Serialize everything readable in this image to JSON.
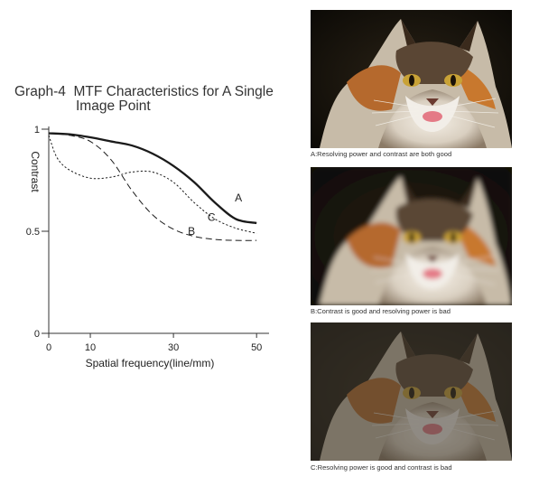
{
  "graph": {
    "title_line1": "Graph-4  MTF Characteristics for A Single",
    "title_line2": "Image Point"
  },
  "chart_data": {
    "type": "line",
    "xlabel": "Spatial frequency(line/mm)",
    "ylabel": "Contrast",
    "xlim": [
      0,
      53
    ],
    "ylim": [
      0,
      1
    ],
    "x_ticks": [
      0,
      10,
      30,
      50
    ],
    "y_ticks": [
      0,
      0.5,
      1
    ],
    "y_tick_labels": [
      "0",
      "0.5",
      "1"
    ],
    "grid": false,
    "series": [
      {
        "name": "A",
        "style": "solid",
        "x": [
          0,
          5,
          10,
          15,
          20,
          25,
          30,
          35,
          40,
          45,
          50
        ],
        "y": [
          0.98,
          0.975,
          0.96,
          0.94,
          0.92,
          0.88,
          0.82,
          0.74,
          0.64,
          0.56,
          0.54
        ]
      },
      {
        "name": "B",
        "style": "dashed",
        "x": [
          0,
          5,
          10,
          15,
          20,
          25,
          30,
          35,
          40,
          45,
          50
        ],
        "y": [
          0.98,
          0.97,
          0.94,
          0.85,
          0.7,
          0.58,
          0.51,
          0.475,
          0.46,
          0.455,
          0.455
        ]
      },
      {
        "name": "C",
        "style": "dotted",
        "x": [
          0,
          2,
          5,
          10,
          15,
          20,
          25,
          30,
          35,
          40,
          45,
          50
        ],
        "y": [
          0.97,
          0.86,
          0.8,
          0.76,
          0.765,
          0.79,
          0.79,
          0.74,
          0.64,
          0.56,
          0.515,
          0.49
        ]
      }
    ]
  },
  "photos": [
    {
      "caption": "A:Resolving power and contrast are both good",
      "sharpness": "sharp",
      "contrast": "high"
    },
    {
      "caption": "B:Contrast is good and resolving power is bad",
      "sharpness": "soft",
      "contrast": "high"
    },
    {
      "caption": "C:Resolving power is good and contrast is bad",
      "sharpness": "sharp",
      "contrast": "low"
    }
  ]
}
